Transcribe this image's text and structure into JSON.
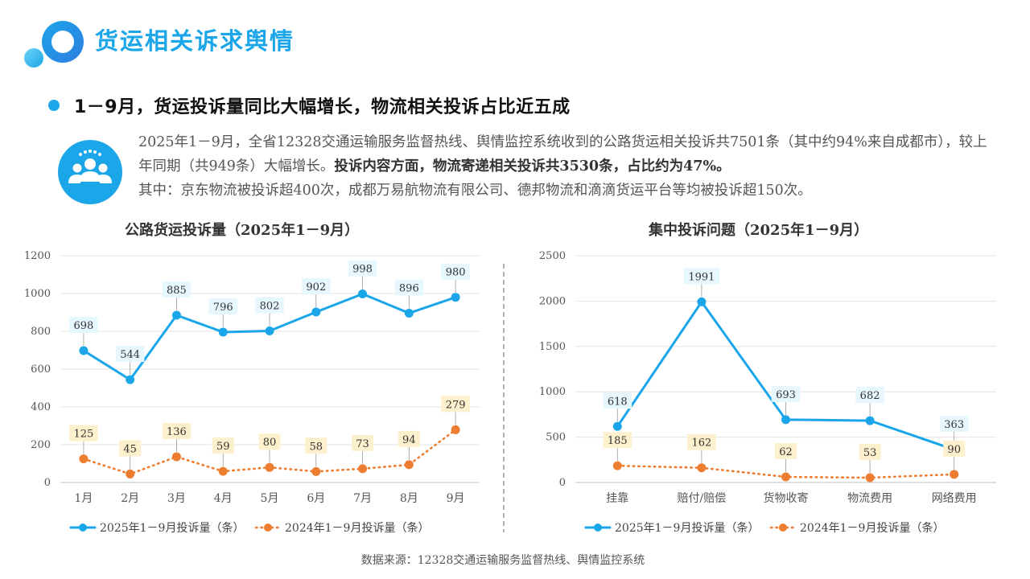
{
  "header": {
    "title": "货运相关诉求舆情"
  },
  "subheading": "1－9月，货运投诉量同比大幅增长，物流相关投诉占比近五成",
  "summary": {
    "part1": "2025年1－9月，全省12328交通运输服务监督热线、舆情监控系统收到的公路货运相关投诉共7501条（其中约94%来自成都市），较上年同期（共949条）大幅增长。",
    "part2_bold": "投诉内容方面，物流寄递相关投诉共3530条，占比约为47%。",
    "part3": "其中：京东物流被投诉超400次，成都万易航物流有限公司、德邦物流和滴滴货运平台等均被投诉超150次。"
  },
  "colors": {
    "accent": "#1aa6e8",
    "series2": "#ed7d31",
    "label_bg_blue": "#e6f7fd",
    "label_bg_orange": "#fdf0cc"
  },
  "icons": {
    "logo": "circle-ring-logo-icon",
    "badge": "people-group-icon"
  },
  "chart_data": [
    {
      "type": "line",
      "title": "公路货运投诉量（2025年1－9月）",
      "categories": [
        "1月",
        "2月",
        "3月",
        "4月",
        "5月",
        "6月",
        "7月",
        "8月",
        "9月"
      ],
      "series": [
        {
          "name": "2025年1－9月投诉量（条）",
          "values": [
            698,
            544,
            885,
            796,
            802,
            902,
            998,
            896,
            980
          ]
        },
        {
          "name": "2024年1－9月投诉量（条）",
          "values": [
            125,
            45,
            136,
            59,
            80,
            58,
            73,
            94,
            279
          ]
        }
      ],
      "ylim": [
        0,
        1200
      ],
      "yticks": [
        0,
        200,
        400,
        600,
        800,
        1000,
        1200
      ],
      "grid": true,
      "legend": "bottom"
    },
    {
      "type": "line",
      "title": "集中投诉问题（2025年1－9月）",
      "categories": [
        "挂靠",
        "赔付/赔偿",
        "货物收寄",
        "物流费用",
        "网络费用"
      ],
      "series": [
        {
          "name": "2025年1－9月投诉量（条）",
          "values": [
            618,
            1991,
            693,
            682,
            363
          ]
        },
        {
          "name": "2024年1－9月投诉量（条）",
          "values": [
            185,
            162,
            62,
            53,
            90
          ]
        }
      ],
      "ylim": [
        0,
        2500
      ],
      "yticks": [
        0,
        500,
        1000,
        1500,
        2000,
        2500
      ],
      "grid": true,
      "legend": "bottom"
    }
  ],
  "footer": {
    "source": "数据来源：12328交通运输服务监督热线、舆情监控系统"
  }
}
